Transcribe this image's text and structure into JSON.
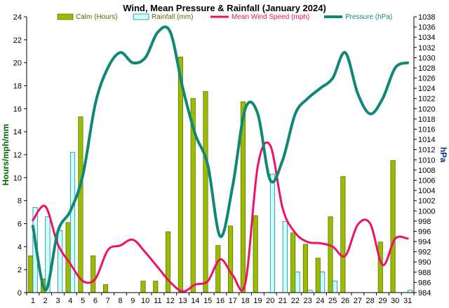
{
  "chart_data": {
    "type": "bar",
    "title": "Wind, Mean Pressure & Rainfall (January 2024)",
    "ylabel": "Hours/mph/mm",
    "y2label": "hPa",
    "ylim": [
      0,
      24
    ],
    "yticks": [
      0,
      2,
      4,
      6,
      8,
      10,
      12,
      14,
      16,
      18,
      20,
      22,
      24
    ],
    "y2lim": [
      984,
      1038
    ],
    "y2ticks": [
      984,
      986,
      988,
      990,
      992,
      994,
      996,
      998,
      1000,
      1002,
      1004,
      1006,
      1008,
      1010,
      1012,
      1014,
      1016,
      1018,
      1020,
      1022,
      1024,
      1026,
      1028,
      1030,
      1032,
      1034,
      1036,
      1038
    ],
    "categories": [
      "1",
      "2",
      "3",
      "4",
      "5",
      "6",
      "7",
      "8",
      "9",
      "10",
      "11",
      "12",
      "13",
      "14",
      "15",
      "16",
      "17",
      "18",
      "19",
      "20",
      "21",
      "22",
      "23",
      "24",
      "25",
      "26",
      "27",
      "28",
      "29",
      "30",
      "31"
    ],
    "legend_position": "top",
    "grid": false,
    "series": [
      {
        "name": "Calm (Hours)",
        "type": "bar",
        "axis": "left",
        "color": "#99bb00",
        "values": [
          3.2,
          1.2,
          0.0,
          6.1,
          15.3,
          3.2,
          0.7,
          0.0,
          0.0,
          1.0,
          1.0,
          5.3,
          20.5,
          16.9,
          17.5,
          4.1,
          5.8,
          16.6,
          6.7,
          0.0,
          0.0,
          5.2,
          4.2,
          3.0,
          6.6,
          10.1,
          0.0,
          0.0,
          4.4,
          11.5,
          0.0
        ]
      },
      {
        "name": "Rainfall (mm)",
        "type": "bar",
        "axis": "left",
        "color": "#ccffff",
        "values": [
          7.4,
          6.6,
          5.4,
          12.2,
          0.0,
          0.0,
          0.0,
          0.0,
          0.0,
          0.0,
          0.0,
          0.0,
          0.0,
          0.0,
          0.0,
          0.0,
          0.0,
          0.0,
          0.0,
          10.3,
          6.2,
          1.8,
          0.2,
          1.8,
          1.0,
          0.0,
          0.0,
          0.0,
          0.0,
          0.0,
          0.2
        ]
      },
      {
        "name": "Mean Wind Speed (mph)",
        "type": "line",
        "axis": "left",
        "color": "#ee1166",
        "values": [
          6.3,
          7.5,
          4.2,
          2.5,
          1.0,
          1.2,
          3.7,
          4.1,
          4.6,
          3.5,
          2.2,
          0.9,
          0.1,
          0.7,
          1.0,
          2.9,
          1.5,
          0.8,
          11.0,
          12.8,
          7.3,
          5.2,
          4.4,
          4.3,
          4.0,
          3.2,
          5.9,
          6.0,
          2.4,
          4.7,
          4.7
        ]
      },
      {
        "name": "Pressure (hPa)",
        "type": "line",
        "axis": "right",
        "color": "#118877",
        "values": [
          997,
          984.5,
          996,
          1000,
          1007,
          1021,
          1028,
          1031,
          1029,
          1030,
          1035,
          1035,
          1024,
          1015,
          1009,
          995,
          1005,
          1020,
          1019,
          1006,
          1010,
          1019,
          1022,
          1024,
          1026,
          1031,
          1023,
          1019,
          1022,
          1028,
          1029
        ]
      }
    ]
  }
}
